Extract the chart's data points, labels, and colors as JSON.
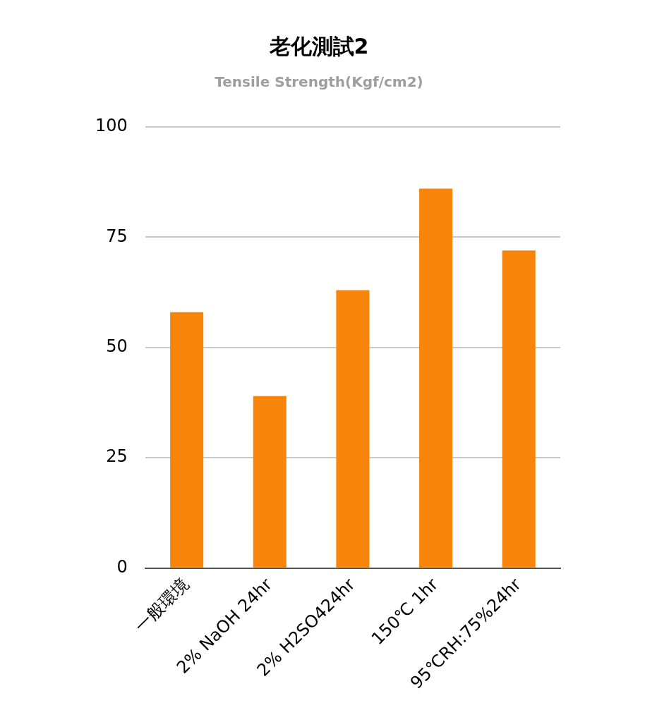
{
  "chart_data": {
    "type": "bar",
    "title": "老化測試2",
    "subtitle": "Tensile Strength(Kgf/cm2)",
    "categories": [
      "一般環境",
      "2% NaOH 24hr",
      "2% H2SO424hr",
      "150℃ 1hr",
      "95℃RH:75%24hr"
    ],
    "values": [
      58,
      39,
      63,
      86,
      72
    ],
    "color": "#f7850b",
    "ylim": [
      0,
      100
    ],
    "yticks": [
      0,
      25,
      50,
      75,
      100
    ],
    "grid": "y",
    "legend": false
  }
}
